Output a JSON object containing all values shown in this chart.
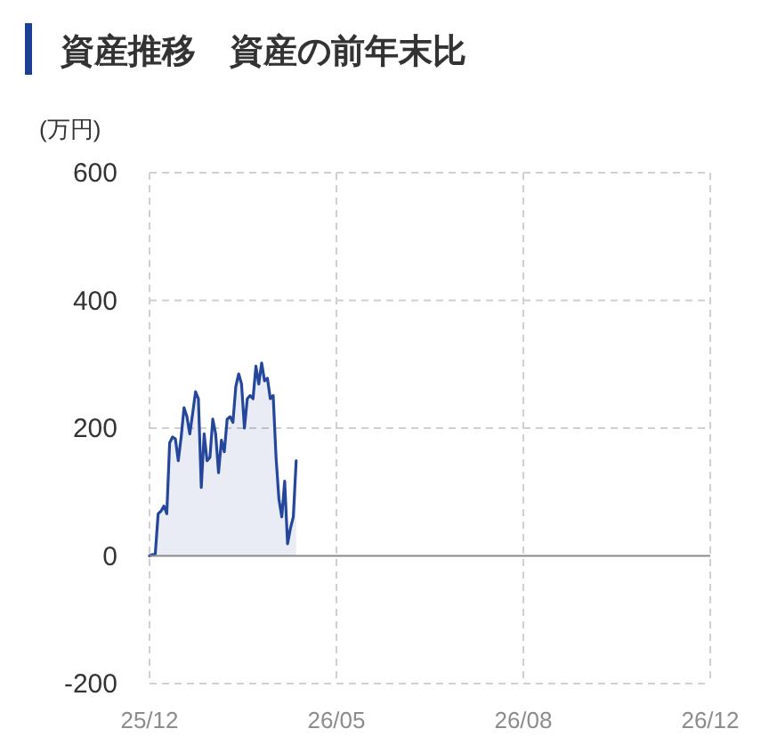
{
  "chart_data": {
    "type": "area",
    "title": "資産推移",
    "subtitle": "資産の前年末比",
    "ylabel": "(万円)",
    "categories": [
      "25/12",
      null,
      null,
      null,
      null,
      null,
      null,
      null,
      null,
      null,
      null,
      null,
      null,
      null,
      null,
      null,
      null,
      null,
      null,
      null,
      null,
      null,
      null,
      null,
      null,
      null,
      null,
      null,
      null,
      null,
      null,
      null,
      null,
      null,
      null,
      null,
      null,
      null,
      null,
      null,
      null,
      null,
      null,
      null,
      null,
      null,
      null,
      null,
      null,
      null,
      null,
      null,
      null,
      null,
      null,
      null,
      null,
      null,
      null,
      null,
      null,
      null,
      null,
      null,
      null,
      "26/05",
      null,
      null,
      null,
      null,
      null,
      null,
      null,
      null,
      null,
      null,
      null,
      null,
      null,
      null,
      null,
      null,
      null,
      null,
      null,
      null,
      null,
      null,
      null,
      null,
      null,
      null,
      null,
      null,
      null,
      null,
      null,
      null,
      null,
      null,
      null,
      null,
      null,
      null,
      null,
      null,
      null,
      null,
      null,
      null,
      null,
      null,
      null,
      null,
      null,
      null,
      null,
      null,
      null,
      null,
      null,
      null,
      null,
      null,
      null,
      null,
      null,
      null,
      null,
      null,
      "26/08",
      null,
      null,
      null,
      null,
      null,
      null,
      null,
      null,
      null,
      null,
      null,
      null,
      null,
      null,
      null,
      null,
      null,
      null,
      null,
      null,
      null,
      null,
      null,
      null,
      null,
      null,
      null,
      null,
      null,
      null,
      null,
      null,
      null,
      null,
      null,
      null,
      null,
      null,
      null,
      null,
      null,
      null,
      null,
      null,
      null,
      null,
      null,
      null,
      null,
      null,
      null,
      null,
      null,
      null,
      null,
      null,
      null,
      null,
      null,
      null,
      null,
      null,
      null,
      null,
      "26/12"
    ],
    "series": [
      {
        "color": "#25479b",
        "values": [
          0,
          2,
          3,
          66,
          70,
          78,
          66,
          177,
          186,
          183,
          149,
          186,
          232,
          218,
          191,
          223,
          257,
          246,
          107,
          191,
          149,
          154,
          214,
          191,
          130,
          181,
          163,
          214,
          218,
          209,
          265,
          285,
          269,
          200,
          246,
          251,
          246,
          297,
          269,
          302,
          274,
          278,
          246,
          251,
          154,
          89,
          61,
          117,
          19,
          43,
          61,
          149,
          null,
          null,
          null,
          null,
          null,
          null,
          null,
          null,
          null,
          null,
          null,
          null,
          null,
          null,
          null,
          null,
          null,
          null,
          null,
          null,
          null,
          null,
          null,
          null,
          null,
          null,
          null,
          null,
          null,
          null,
          null,
          null,
          null,
          null,
          null,
          null,
          null,
          null,
          null,
          null,
          null,
          null,
          null,
          null,
          null,
          null,
          null,
          null,
          null,
          null,
          null,
          null,
          null,
          null,
          null,
          null,
          null,
          null,
          null,
          null,
          null,
          null,
          null,
          null,
          null,
          null,
          null,
          null,
          null,
          null,
          null,
          null,
          null,
          null,
          null,
          null,
          null,
          null,
          null,
          null,
          null,
          null,
          null,
          null,
          null,
          null,
          null,
          null,
          null,
          null,
          null,
          null,
          null,
          null,
          null,
          null,
          null,
          null,
          null,
          null,
          null,
          null,
          null,
          null,
          null,
          null,
          null,
          null,
          null,
          null,
          null,
          null,
          null,
          null,
          null,
          null,
          null,
          null,
          null,
          null,
          null,
          null,
          null,
          null,
          null,
          null,
          null,
          null,
          null,
          null,
          null,
          null,
          null,
          null,
          null,
          null,
          null,
          null,
          null,
          null,
          null,
          null,
          null,
          null
        ]
      }
    ],
    "ylim": [
      -200,
      600
    ],
    "yticks": [
      -200,
      0,
      200,
      400,
      600
    ],
    "grid": true
  }
}
